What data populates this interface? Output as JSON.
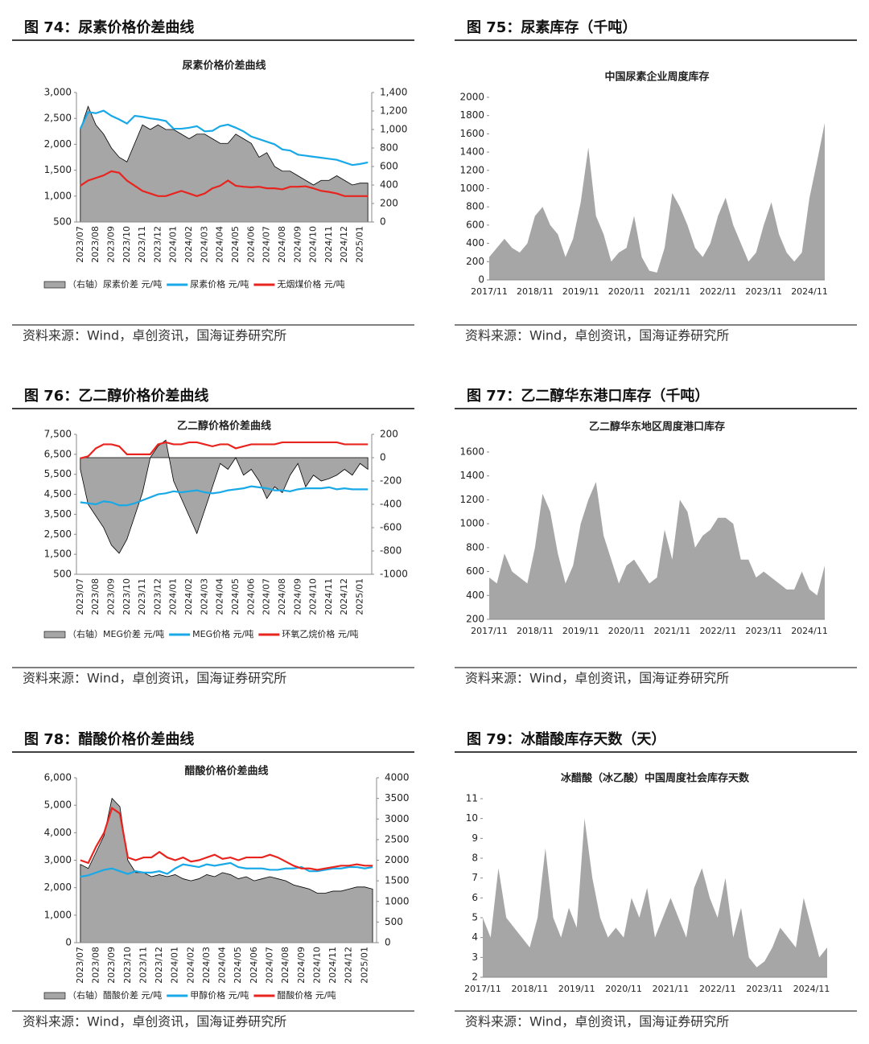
{
  "chart_data": [
    {
      "figure_title": "图 74：尿素价格价差曲线",
      "title": "尿素价格价差曲线",
      "type": "line",
      "source": "资料来源：Wind，卓创资讯，国海证券研究所",
      "categories": [
        "2023/07",
        null,
        "2023/08",
        null,
        "2023/09",
        null,
        "2023/10",
        null,
        "2023/11",
        null,
        "2023/12",
        null,
        "2024/01",
        null,
        "2024/02",
        null,
        "2024/03",
        null,
        "2024/04",
        null,
        "2024/05",
        null,
        "2024/06",
        null,
        "2024/07",
        null,
        "2024/08",
        null,
        "2024/09",
        null,
        "2024/10",
        null,
        "2024/11",
        null,
        "2024/12",
        null,
        "2025/01",
        null
      ],
      "ylim": [
        500,
        3000
      ],
      "yticks": [
        500,
        {
          "value": 1000,
          "label": "1,000"
        },
        {
          "value": 1500,
          "label": "1,500"
        },
        {
          "value": 2000,
          "label": "2,000"
        },
        {
          "value": 2500,
          "label": "2,500"
        },
        {
          "value": 3000,
          "label": "3,000"
        }
      ],
      "y2lim": [
        0,
        1400
      ],
      "y2ticks": [
        0,
        200,
        400,
        600,
        800,
        {
          "value": 1000,
          "label": "1,000"
        },
        {
          "value": 1200,
          "label": "1,200"
        },
        {
          "value": 1400,
          "label": "1,400"
        }
      ],
      "series": [
        {
          "name": "（右轴）尿素价差 元/吨",
          "color": "#a6a6a6",
          "style": "area",
          "axis": "y2",
          "values": [
            1000,
            1250,
            1050,
            950,
            800,
            700,
            650,
            850,
            1050,
            1000,
            1050,
            1000,
            1000,
            950,
            900,
            950,
            950,
            900,
            850,
            850,
            950,
            900,
            850,
            700,
            750,
            600,
            550,
            550,
            500,
            450,
            400,
            450,
            450,
            500,
            450,
            400,
            420,
            420
          ]
        },
        {
          "name": "尿素价格 元/吨",
          "color": "#19a9e6",
          "style": "line",
          "values": [
            2300,
            2620,
            2600,
            2650,
            2550,
            2480,
            2400,
            2550,
            2530,
            2500,
            2480,
            2450,
            2300,
            2300,
            2320,
            2350,
            2250,
            2260,
            2350,
            2380,
            2320,
            2250,
            2150,
            2100,
            2050,
            2000,
            1900,
            1880,
            1800,
            1780,
            1760,
            1740,
            1720,
            1700,
            1650,
            1600,
            1620,
            1650
          ]
        },
        {
          "name": "无烟煤价格 元/吨",
          "color": "#e8241f",
          "style": "line",
          "values": [
            1200,
            1300,
            1350,
            1400,
            1480,
            1450,
            1300,
            1200,
            1100,
            1050,
            1000,
            1000,
            1050,
            1100,
            1050,
            1000,
            1050,
            1150,
            1200,
            1300,
            1200,
            1180,
            1170,
            1180,
            1150,
            1150,
            1130,
            1180,
            1180,
            1190,
            1150,
            1100,
            1080,
            1050,
            1000,
            1000,
            1000,
            1000
          ]
        }
      ]
    },
    {
      "figure_title": "图 75：尿素库存（千吨）",
      "title": "中国尿素企业周度库存",
      "type": "area",
      "source": "资料来源：Wind，卓创资讯，国海证券研究所",
      "categories": [
        "2017/11",
        null,
        null,
        null,
        null,
        null,
        "2018/11",
        null,
        null,
        null,
        null,
        null,
        "2019/11",
        null,
        null,
        null,
        null,
        null,
        "2020/11",
        null,
        null,
        null,
        null,
        null,
        "2021/11",
        null,
        null,
        null,
        null,
        null,
        "2022/11",
        null,
        null,
        null,
        null,
        null,
        "2023/11",
        null,
        null,
        null,
        null,
        null,
        "2024/11",
        null,
        null
      ],
      "values": [
        250,
        350,
        450,
        350,
        300,
        400,
        700,
        800,
        600,
        500,
        250,
        450,
        850,
        1450,
        700,
        500,
        200,
        300,
        350,
        700,
        250,
        100,
        80,
        350,
        950,
        800,
        600,
        350,
        250,
        400,
        700,
        900,
        600,
        400,
        200,
        300,
        600,
        850,
        500,
        300,
        200,
        300,
        900,
        1300,
        1720
      ],
      "color": "#a6a6a6",
      "ylim": [
        0,
        2000
      ],
      "yticks": [
        0,
        200,
        400,
        600,
        800,
        1000,
        1200,
        1400,
        1600,
        1800,
        2000
      ]
    },
    {
      "figure_title": "图 76：乙二醇价格价差曲线",
      "title": "乙二醇价格价差曲线",
      "type": "line",
      "source": "资料来源：Wind，卓创资讯，国海证券研究所",
      "categories": [
        "2023/07",
        null,
        "2023/08",
        null,
        "2023/09",
        null,
        "2023/10",
        null,
        "2023/11",
        null,
        "2023/12",
        null,
        "2024/01",
        null,
        "2024/02",
        null,
        "2024/03",
        null,
        "2024/04",
        null,
        "2024/05",
        null,
        "2024/06",
        null,
        "2024/07",
        null,
        "2024/08",
        null,
        "2024/09",
        null,
        "2024/10",
        null,
        "2024/11",
        null,
        "2024/12",
        null,
        "2025/01",
        null
      ],
      "ylim": [
        500,
        7500
      ],
      "yticks": [
        500,
        {
          "value": 1500,
          "label": "1,500"
        },
        {
          "value": 2500,
          "label": "2,500"
        },
        {
          "value": 3500,
          "label": "3,500"
        },
        {
          "value": 4500,
          "label": "4,500"
        },
        {
          "value": 5500,
          "label": "5,500"
        },
        {
          "value": 6500,
          "label": "6,500"
        },
        {
          "value": 7500,
          "label": "7,500"
        }
      ],
      "y2lim": [
        -1000,
        200
      ],
      "y2ticks": [
        -1000,
        -800,
        -600,
        -400,
        -200,
        0,
        200
      ],
      "series": [
        {
          "name": "（右轴）MEG价差 元/吨",
          "color": "#a6a6a6",
          "style": "area",
          "axis": "y2",
          "values": [
            -100,
            -400,
            -500,
            -600,
            -750,
            -820,
            -700,
            -500,
            -300,
            0,
            100,
            150,
            -200,
            -350,
            -500,
            -650,
            -450,
            -250,
            -50,
            -100,
            0,
            -150,
            -100,
            -200,
            -350,
            -250,
            -300,
            -150,
            -50,
            -250,
            -150,
            -200,
            -180,
            -150,
            -100,
            -150,
            -50,
            -100
          ]
        },
        {
          "name": "MEG价格 元/吨",
          "color": "#19a9e6",
          "style": "line",
          "values": [
            4100,
            4050,
            4000,
            4150,
            4100,
            3950,
            3950,
            4050,
            4200,
            4350,
            4500,
            4550,
            4650,
            4600,
            4650,
            4700,
            4600,
            4550,
            4600,
            4700,
            4750,
            4800,
            4900,
            4850,
            4800,
            4700,
            4700,
            4650,
            4750,
            4800,
            4800,
            4800,
            4850,
            4750,
            4800,
            4750,
            4750,
            4750
          ]
        },
        {
          "name": "环氧乙烷价格 元/吨",
          "color": "#e8241f",
          "style": "line",
          "values": [
            6300,
            6400,
            6800,
            7000,
            7000,
            6900,
            6500,
            6500,
            6500,
            6500,
            7000,
            7100,
            7000,
            7000,
            7100,
            7100,
            7000,
            6900,
            7000,
            7000,
            6800,
            6900,
            7000,
            7000,
            7000,
            7000,
            7100,
            7100,
            7100,
            7100,
            7100,
            7100,
            7100,
            7100,
            7000,
            7000,
            7000,
            7000
          ]
        }
      ]
    },
    {
      "figure_title": "图 77：乙二醇华东港口库存（千吨）",
      "title": "乙二醇华东地区周度港口库存",
      "type": "area",
      "source": "资料来源：Wind，卓创资讯，国海证券研究所",
      "categories": [
        "2017/11",
        null,
        null,
        null,
        null,
        null,
        "2018/11",
        null,
        null,
        null,
        null,
        null,
        "2019/11",
        null,
        null,
        null,
        null,
        null,
        "2020/11",
        null,
        null,
        null,
        null,
        null,
        "2021/11",
        null,
        null,
        null,
        null,
        null,
        "2022/11",
        null,
        null,
        null,
        null,
        null,
        "2023/11",
        null,
        null,
        null,
        null,
        null,
        "2024/11",
        null,
        null
      ],
      "values": [
        550,
        500,
        750,
        600,
        550,
        500,
        800,
        1250,
        1100,
        750,
        500,
        650,
        1000,
        1200,
        1350,
        900,
        700,
        500,
        650,
        700,
        600,
        500,
        550,
        950,
        700,
        1200,
        1100,
        800,
        900,
        950,
        1050,
        1050,
        1000,
        700,
        700,
        550,
        600,
        550,
        500,
        450,
        450,
        600,
        450,
        400,
        650
      ],
      "color": "#a6a6a6",
      "ylim": [
        200,
        1600
      ],
      "yticks": [
        200,
        400,
        600,
        800,
        1000,
        1200,
        1400,
        1600
      ]
    },
    {
      "figure_title": "图 78：醋酸价格价差曲线",
      "title": "醋酸价格价差曲线",
      "type": "line",
      "source": "资料来源：Wind，卓创资讯，国海证券研究所",
      "categories": [
        "2023/07",
        null,
        "2023/08",
        null,
        "2023/09",
        null,
        "2023/10",
        null,
        "2023/11",
        null,
        "2023/12",
        null,
        "2024/01",
        null,
        "2024/02",
        null,
        "2024/03",
        null,
        "2024/04",
        null,
        "2024/05",
        null,
        "2024/06",
        null,
        "2024/07",
        null,
        "2024/08",
        null,
        "2024/09",
        null,
        "2024/10",
        null,
        "2024/11",
        null,
        "2024/12",
        null,
        "2025/01",
        null
      ],
      "ylim": [
        0,
        6000
      ],
      "yticks": [
        0,
        {
          "value": 1000,
          "label": "1,000"
        },
        {
          "value": 2000,
          "label": "2,000"
        },
        {
          "value": 3000,
          "label": "3,000"
        },
        {
          "value": 4000,
          "label": "4,000"
        },
        {
          "value": 5000,
          "label": "5,000"
        },
        {
          "value": 6000,
          "label": "6,000"
        }
      ],
      "y2lim": [
        0,
        4000
      ],
      "y2ticks": [
        0,
        500,
        1000,
        1500,
        2000,
        2500,
        3000,
        3500,
        4000
      ],
      "series": [
        {
          "name": "（右轴）醋酸价差 元/吨",
          "color": "#a6a6a6",
          "style": "area",
          "axis": "y2",
          "values": [
            1900,
            1800,
            2200,
            2600,
            3500,
            3300,
            2000,
            1700,
            1700,
            1600,
            1650,
            1600,
            1650,
            1550,
            1500,
            1550,
            1650,
            1600,
            1700,
            1650,
            1550,
            1600,
            1500,
            1550,
            1600,
            1550,
            1500,
            1400,
            1350,
            1300,
            1200,
            1200,
            1250,
            1250,
            1300,
            1350,
            1350,
            1300
          ]
        },
        {
          "name": "甲醇价格 元/吨",
          "color": "#19a9e6",
          "style": "line",
          "values": [
            2400,
            2450,
            2550,
            2650,
            2700,
            2600,
            2500,
            2600,
            2550,
            2550,
            2600,
            2500,
            2700,
            2850,
            2800,
            2750,
            2850,
            2800,
            2850,
            2900,
            2750,
            2700,
            2700,
            2700,
            2650,
            2650,
            2700,
            2700,
            2750,
            2600,
            2600,
            2650,
            2700,
            2700,
            2750,
            2750,
            2700,
            2750
          ]
        },
        {
          "name": "醋酸价格 元/吨",
          "color": "#e8241f",
          "style": "line",
          "values": [
            3000,
            2900,
            3500,
            4000,
            4900,
            4700,
            3100,
            3000,
            3100,
            3100,
            3300,
            3100,
            3000,
            3100,
            2950,
            3000,
            3100,
            3200,
            3050,
            3100,
            3000,
            3100,
            3100,
            3100,
            3200,
            3100,
            2950,
            2800,
            2700,
            2700,
            2650,
            2700,
            2750,
            2800,
            2800,
            2850,
            2800,
            2800
          ]
        }
      ]
    },
    {
      "figure_title": "图 79：冰醋酸库存天数（天）",
      "title": "冰醋酸（冰乙酸）中国周度社会库存天数",
      "type": "area",
      "source": "资料来源：Wind，卓创资讯，国海证券研究所",
      "categories": [
        "2017/11",
        null,
        null,
        null,
        null,
        null,
        "2018/11",
        null,
        null,
        null,
        null,
        null,
        "2019/11",
        null,
        null,
        null,
        null,
        null,
        "2020/11",
        null,
        null,
        null,
        null,
        null,
        "2021/11",
        null,
        null,
        null,
        null,
        null,
        "2022/11",
        null,
        null,
        null,
        null,
        null,
        "2023/11",
        null,
        null,
        null,
        null,
        null,
        "2024/11",
        null,
        null
      ],
      "values": [
        5,
        4,
        7.5,
        5,
        4.5,
        4,
        3.5,
        5,
        8.5,
        5,
        4,
        5.5,
        4.5,
        10,
        7,
        5,
        4,
        4.5,
        4,
        6,
        5,
        6.5,
        4,
        5,
        6,
        5,
        4,
        6.5,
        7.5,
        6,
        5,
        7,
        4,
        5.5,
        3,
        2.5,
        2.8,
        3.5,
        4.5,
        4,
        3.5,
        6,
        4.5,
        3,
        3.5
      ],
      "color": "#a6a6a6",
      "ylim": [
        2,
        11
      ],
      "yticks": [
        2,
        3,
        4,
        5,
        6,
        7,
        8,
        9,
        10,
        11
      ]
    }
  ]
}
